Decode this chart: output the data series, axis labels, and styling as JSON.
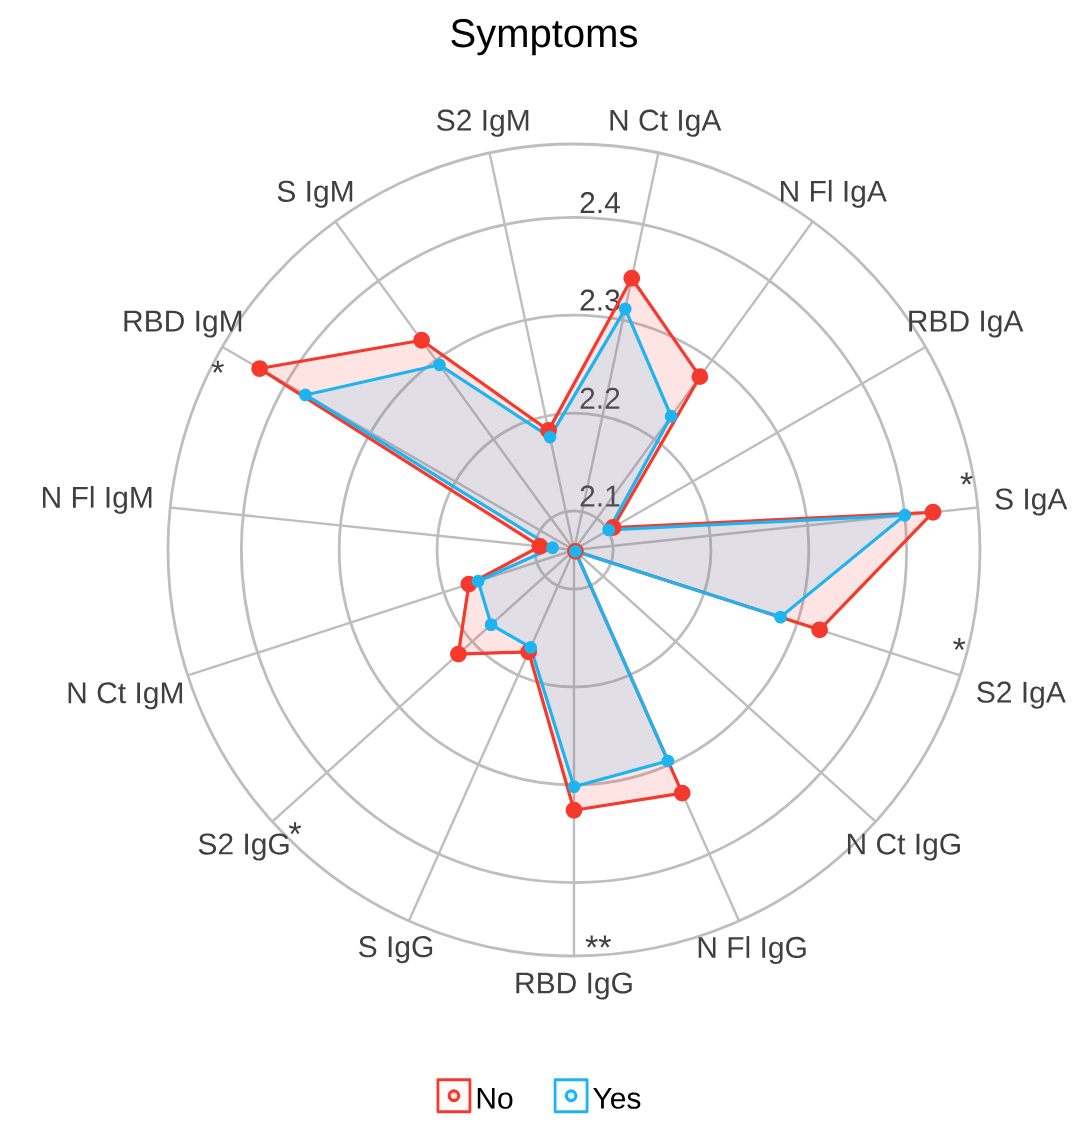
{
  "chart_data": {
    "type": "radar",
    "title": "Symptoms",
    "categories": [
      "N Ct IgA",
      "N Fl IgA",
      "RBD IgA",
      "S IgA",
      "S2 IgA",
      "N Ct IgG",
      "N Fl IgG",
      "RBD IgG",
      "S IgG",
      "S2 IgG",
      "N Ct IgM",
      "N Fl IgM",
      "RBD IgM",
      "S IgM",
      "S2 IgM"
    ],
    "series": [
      {
        "name": "No",
        "color": "#f5392c",
        "values": [
          2.344,
          2.279,
          2.106,
          2.429,
          2.324,
          2.062,
          2.332,
          2.326,
          2.174,
          2.219,
          2.173,
          2.095,
          2.431,
          2.325,
          2.185
        ]
      },
      {
        "name": "Yes",
        "color": "#1eb4f0",
        "values": [
          2.312,
          2.229,
          2.101,
          2.4,
          2.282,
          2.062,
          2.296,
          2.302,
          2.169,
          2.174,
          2.163,
          2.082,
          2.377,
          2.294,
          2.178
        ]
      }
    ],
    "ylim": [
      2.06,
      2.475
    ],
    "yticks": [
      2.1,
      2.2,
      2.3,
      2.4
    ],
    "grid": true,
    "legend": "bottom",
    "marker": "circle",
    "annotations": [
      {
        "text": "*",
        "x": "RBD IgM"
      },
      {
        "text": "*",
        "x": "S IgA"
      },
      {
        "text": "*",
        "x": "S2 IgA"
      },
      {
        "text": "*",
        "x": "S2 IgG"
      },
      {
        "text": "**",
        "x": "RBD IgG"
      }
    ]
  }
}
